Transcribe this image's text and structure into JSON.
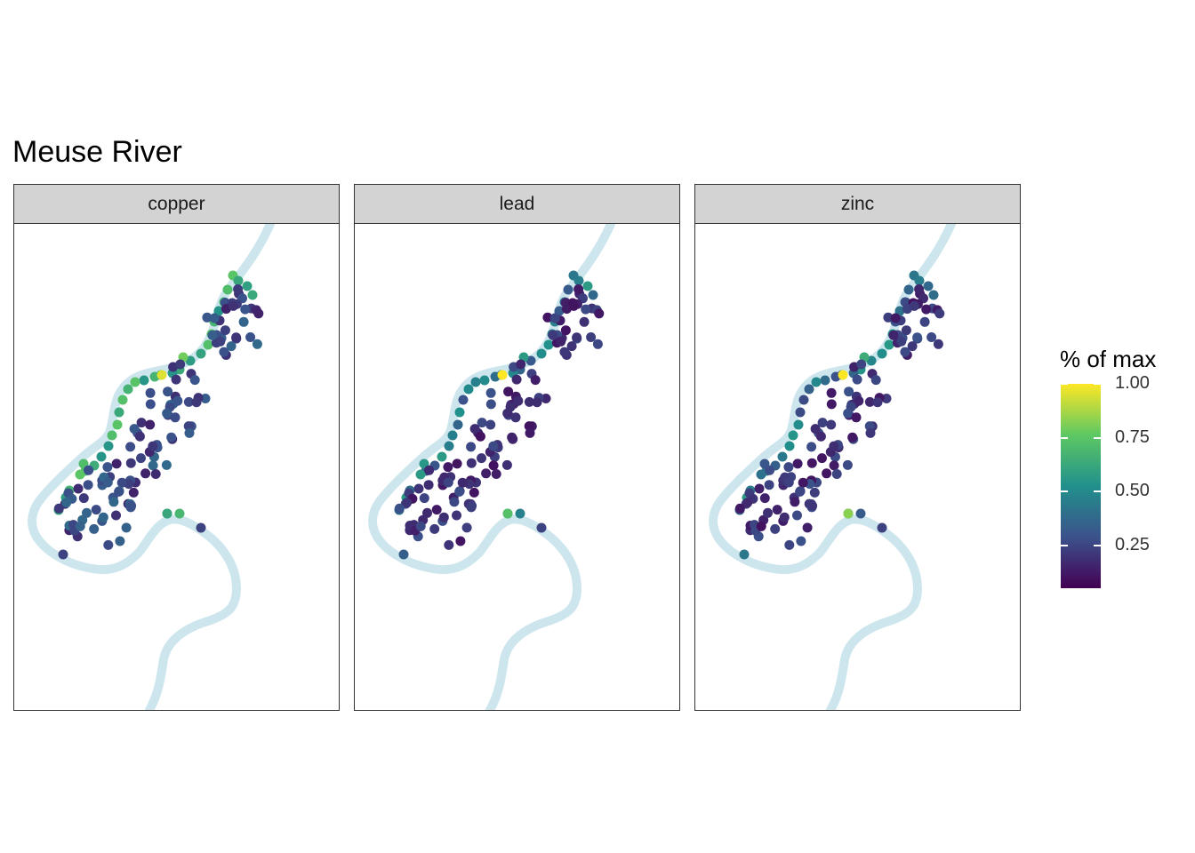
{
  "title": "Meuse River",
  "panels": [
    "copper",
    "lead",
    "zinc"
  ],
  "colors": {
    "river": "#cde6ee",
    "viridis": [
      "#440154",
      "#3b528b",
      "#21908c",
      "#5dc863",
      "#fde725"
    ],
    "strip_bg": "#d3d3d3"
  },
  "legend": {
    "title": "% of max",
    "ticks": [
      {
        "label": "1.00",
        "value": 1.0
      },
      {
        "label": "0.75",
        "value": 0.75
      },
      {
        "label": "0.50",
        "value": 0.5
      },
      {
        "label": "0.25",
        "value": 0.25
      }
    ],
    "min": 0.05,
    "max": 1.0
  }
}
